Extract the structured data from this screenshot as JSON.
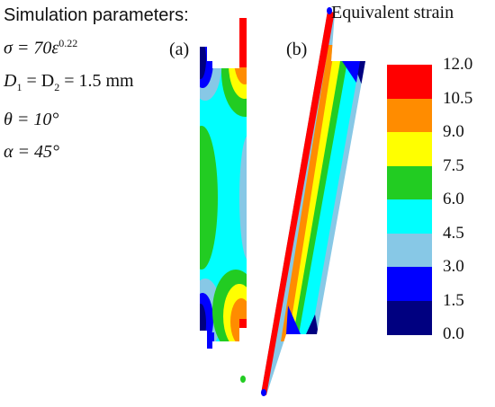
{
  "params": {
    "title": "Simulation parameters:",
    "sigma": "σ = 70ε",
    "sigma_exp": "0.22",
    "diam_lhs": "D",
    "diam_sub1": "1",
    "diam_eq": " = D",
    "diam_sub2": "2",
    "diam_val": " = 1.5 mm",
    "theta": "θ = 10°",
    "alpha": "α = 45°"
  },
  "panels": {
    "a": "(a)",
    "b": "(b)"
  },
  "legend": {
    "title": "Equivalent strain",
    "ticks": [
      "12.0",
      "10.5",
      "9.0",
      "7.5",
      "6.0",
      "4.5",
      "3.0",
      "1.5",
      "0.0"
    ],
    "colors": [
      "#ff0000",
      "#ff8c00",
      "#ffff00",
      "#22cc22",
      "#00ffff",
      "#87c8e6",
      "#0000ff",
      "#000080"
    ]
  }
}
